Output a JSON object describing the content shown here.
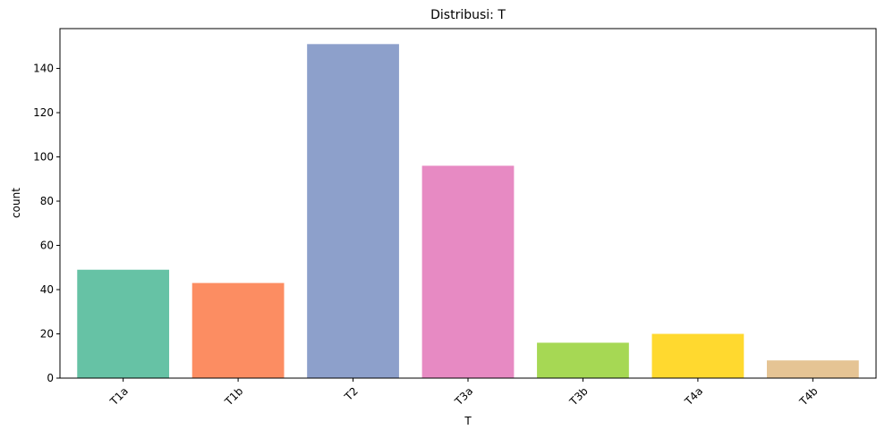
{
  "chart_data": {
    "type": "bar",
    "title": "Distribusi: T",
    "xlabel": "T",
    "ylabel": "count",
    "categories": [
      "T1a",
      "T1b",
      "T2",
      "T3a",
      "T3b",
      "T4a",
      "T4b"
    ],
    "values": [
      49,
      43,
      151,
      96,
      16,
      20,
      8
    ],
    "colors": [
      "#66c2a5",
      "#fc8d62",
      "#8da0cb",
      "#e78ac3",
      "#a6d854",
      "#ffd92f",
      "#e5c494"
    ],
    "ylim": [
      0,
      158
    ],
    "yticks": [
      0,
      20,
      40,
      60,
      80,
      100,
      120,
      140
    ],
    "grid": false,
    "legend": "none"
  }
}
